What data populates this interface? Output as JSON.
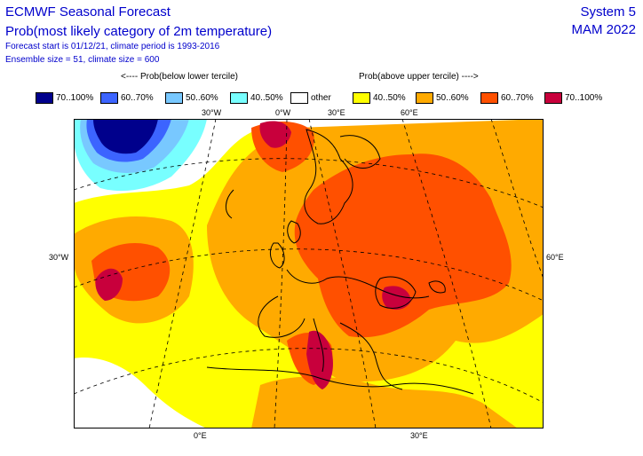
{
  "header": {
    "title": "ECMWF Seasonal Forecast",
    "subtitle": "Prob(most likely category of 2m temperature)",
    "forecast_info": "Forecast start is 01/12/21, climate period is 1993-2016",
    "ensemble_info": "Ensemble size = 51, climate size = 600",
    "system": "System 5",
    "period": "MAM 2022"
  },
  "legend": {
    "below_label": "<---- Prob(below lower tercile)",
    "above_label": "Prob(above upper tercile) ---->",
    "items": [
      {
        "label": "70..100%",
        "color": "#00008c"
      },
      {
        "label": "60..70%",
        "color": "#3c64ff"
      },
      {
        "label": "50..60%",
        "color": "#78c8ff"
      },
      {
        "label": "40..50%",
        "color": "#78ffff"
      },
      {
        "label": "other",
        "color": "#ffffff"
      },
      {
        "label": "40..50%",
        "color": "#ffff00"
      },
      {
        "label": "50..60%",
        "color": "#ffaa00"
      },
      {
        "label": "60..70%",
        "color": "#ff5000"
      },
      {
        "label": "70..100%",
        "color": "#c8003c"
      }
    ]
  },
  "map": {
    "coord_labels": {
      "top_30w": "30°W",
      "top_0w": "0°W",
      "top_30e": "30°E",
      "top_60e": "60°E",
      "left_30w": "30°W",
      "right_60e": "60°E",
      "bottom_0e": "0°E",
      "bottom_30e": "30°E"
    }
  }
}
